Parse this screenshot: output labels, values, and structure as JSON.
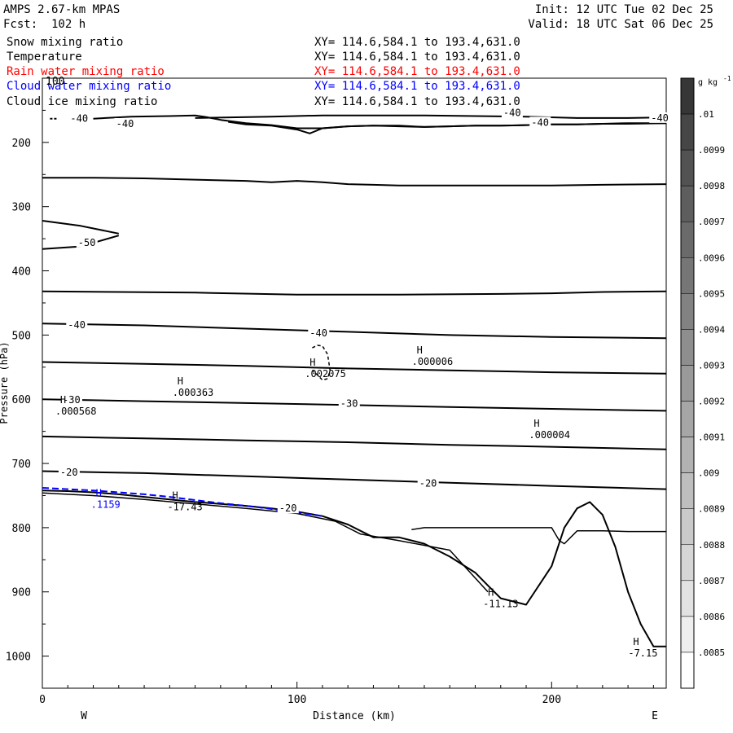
{
  "header": {
    "model": "AMPS 2.67-km MPAS",
    "forecast": "Fcst:  102 h",
    "init": "Init: 12 UTC Tue 02 Dec 25",
    "valid": "Valid: 18 UTC Sat 06 Dec 25"
  },
  "fields": [
    {
      "name": "Snow mixing ratio",
      "xy": "XY= 114.6,584.1 to 193.4,631.0",
      "color": "#000000"
    },
    {
      "name": "Temperature",
      "xy": "XY= 114.6,584.1 to 193.4,631.0",
      "color": "#000000"
    },
    {
      "name": "Rain water mixing ratio",
      "xy": "XY= 114.6,584.1 to 193.4,631.0",
      "color": "#ff0000"
    },
    {
      "name": "Cloud water mixing ratio",
      "xy": "XY= 114.6,584.1 to 193.4,631.0",
      "color": "#0000ff"
    },
    {
      "name": "Cloud ice mixing ratio",
      "xy": "XY= 114.6,584.1 to 193.4,631.0",
      "color": "#000000"
    }
  ],
  "chart_data": {
    "type": "line",
    "title": "",
    "xlabel": "Distance (km)",
    "ylabel": "Pressure (hPa)",
    "xlim": [
      0,
      245
    ],
    "ylim": [
      1050,
      100
    ],
    "x_ticks": [
      0,
      100,
      200
    ],
    "y_ticks": [
      200,
      300,
      400,
      500,
      600,
      700,
      800,
      900,
      1000
    ],
    "y_top_label": "100",
    "west_label": "W",
    "east_label": "E",
    "colorbar": {
      "unit": "g kg",
      "unit_sup": "-1",
      "levels": [
        ".01",
        ".0099",
        ".0098",
        ".0097",
        ".0096",
        ".0095",
        ".0094",
        ".0093",
        ".0092",
        ".0091",
        ".009",
        ".0089",
        ".0088",
        ".0087",
        ".0086",
        ".0085"
      ],
      "colors": [
        "#363636",
        "#464646",
        "#525252",
        "#5e5e5e",
        "#6a6a6a",
        "#767676",
        "#828282",
        "#8e8e8e",
        "#9a9a9a",
        "#a6a6a6",
        "#b2b2b2",
        "#bebebe",
        "#cacaca",
        "#d6d6d6",
        "#e2e2e2",
        "#eeeeee",
        "#ffffff"
      ]
    },
    "isotherms": [
      {
        "x": [
          60,
          90,
          110,
          130,
          150,
          170,
          190,
          210,
          230,
          245
        ],
        "y": [
          162,
          160,
          158,
          158,
          158,
          159,
          160,
          162,
          162,
          161
        ]
      },
      {
        "x": [
          73,
          80,
          90,
          100,
          105,
          110,
          120,
          130,
          140,
          150,
          160,
          170,
          180,
          190,
          200,
          210,
          220,
          230,
          245
        ],
        "y": [
          168,
          172,
          174,
          180,
          186,
          178,
          175,
          174,
          175,
          176,
          175,
          174,
          174,
          173,
          172,
          172,
          171,
          171,
          170
        ]
      },
      {
        "x": [
          20,
          35,
          50,
          60,
          65,
          70,
          80,
          90,
          100,
          110,
          120,
          130,
          140,
          150,
          160,
          170,
          180,
          190,
          200,
          210,
          220,
          230,
          245
        ],
        "y": [
          163,
          160,
          159,
          158,
          161,
          165,
          170,
          173,
          178,
          178,
          175,
          174,
          174,
          176,
          175,
          174,
          174,
          173,
          172,
          172,
          171,
          170,
          170
        ]
      },
      {
        "x": [
          0,
          20,
          40,
          60,
          80,
          90,
          100,
          110,
          120,
          130,
          140,
          150,
          160,
          180,
          200,
          220,
          245
        ],
        "y": [
          255,
          255,
          256,
          258,
          260,
          262,
          260,
          262,
          265,
          266,
          267,
          267,
          267,
          267,
          267,
          266,
          265
        ]
      },
      {
        "x": [
          0,
          15,
          30
        ],
        "y": [
          322,
          330,
          342
        ]
      },
      {
        "x": [
          0,
          15,
          30
        ],
        "y": [
          366,
          362,
          345
        ]
      },
      {
        "x": [
          0,
          30,
          60,
          100,
          140,
          180,
          200,
          220,
          245
        ],
        "y": [
          432,
          433,
          434,
          437,
          437,
          436,
          435,
          433,
          432
        ]
      },
      {
        "x": [
          0,
          40,
          80,
          120,
          160,
          200,
          245
        ],
        "y": [
          482,
          485,
          490,
          495,
          500,
          503,
          505
        ]
      },
      {
        "x": [
          0,
          40,
          80,
          120,
          160,
          200,
          245
        ],
        "y": [
          542,
          545,
          548,
          552,
          555,
          558,
          560
        ]
      },
      {
        "x": [
          0,
          40,
          80,
          120,
          160,
          200,
          245
        ],
        "y": [
          600,
          603,
          606,
          609,
          612,
          615,
          618
        ]
      },
      {
        "x": [
          0,
          40,
          80,
          120,
          160,
          200,
          245
        ],
        "y": [
          658,
          661,
          664,
          667,
          671,
          674,
          678
        ]
      },
      {
        "x": [
          0,
          40,
          80,
          120,
          160,
          200,
          245
        ],
        "y": [
          712,
          715,
          720,
          725,
          730,
          735,
          740
        ]
      }
    ],
    "terrain_upper": {
      "x": [
        0,
        10,
        20,
        30,
        40,
        50,
        60,
        70,
        80,
        90,
        100,
        110,
        120,
        130,
        140,
        150,
        160,
        170,
        175,
        180,
        190,
        200,
        205,
        210,
        215,
        220,
        225,
        230,
        235,
        240,
        245
      ],
      "y": [
        742,
        743,
        745,
        748,
        752,
        756,
        760,
        763,
        766,
        770,
        775,
        782,
        795,
        815,
        815,
        825,
        845,
        870,
        890,
        910,
        920,
        860,
        800,
        770,
        760,
        780,
        830,
        900,
        950,
        985,
        985
      ]
    },
    "terrain_lower": {
      "x": [
        0,
        20,
        40,
        60,
        80,
        100,
        115,
        125,
        140,
        160,
        175
      ],
      "y": [
        746,
        750,
        756,
        763,
        770,
        778,
        790,
        810,
        820,
        835,
        900
      ]
    },
    "snow_contour": {
      "x": [
        145,
        150,
        160,
        170,
        180,
        190,
        200,
        203,
        205,
        210,
        220,
        230,
        245
      ],
      "y": [
        803,
        800,
        800,
        800,
        800,
        800,
        800,
        820,
        825,
        805,
        805,
        806,
        806
      ]
    },
    "cloud_water": {
      "x": [
        0,
        10,
        20,
        30,
        40,
        50,
        60,
        70,
        80,
        90,
        100,
        110
      ],
      "y": [
        738,
        740,
        742,
        745,
        748,
        752,
        757,
        762,
        766,
        771,
        776,
        782
      ]
    },
    "ice_dashed": {
      "x": [
        106,
        108,
        110,
        112,
        113,
        112,
        110,
        108,
        106
      ],
      "y": [
        520,
        516,
        517,
        530,
        555,
        568,
        570,
        562,
        555
      ]
    },
    "top_left_dashed": {
      "x": [
        3,
        6
      ],
      "y": [
        163,
        163
      ]
    },
    "contour_labels": [
      {
        "text": "-40",
        "x": 11,
        "y": 163
      },
      {
        "text": "-40",
        "x": 29,
        "y": 171
      },
      {
        "text": "-40",
        "x": 181,
        "y": 154
      },
      {
        "text": "-40",
        "x": 192,
        "y": 169
      },
      {
        "text": "-40",
        "x": 239,
        "y": 162
      },
      {
        "text": "-50",
        "x": 14,
        "y": 356
      },
      {
        "text": "-40",
        "x": 10,
        "y": 484
      },
      {
        "text": "-40",
        "x": 105,
        "y": 497
      },
      {
        "text": "-30",
        "x": 8,
        "y": 601
      },
      {
        "text": "-30",
        "x": 117,
        "y": 607
      },
      {
        "text": "-20",
        "x": 7,
        "y": 714
      },
      {
        "text": "-20",
        "x": 148,
        "y": 731
      },
      {
        "text": "-20",
        "x": 93,
        "y": 770
      }
    ],
    "extrema": [
      {
        "mark": "H",
        "value": ".000568",
        "x": 7,
        "y": 606,
        "color": "#000000"
      },
      {
        "mark": "H",
        "value": ".000363",
        "x": 53,
        "y": 577,
        "color": "#000000"
      },
      {
        "mark": "H",
        "value": ".002075",
        "x": 105,
        "y": 548,
        "color": "#000000"
      },
      {
        "mark": "H",
        "value": ".000006",
        "x": 147,
        "y": 529,
        "color": "#000000"
      },
      {
        "mark": "H",
        "value": ".000004",
        "x": 193,
        "y": 643,
        "color": "#000000"
      },
      {
        "mark": "H",
        "value": ".1159",
        "x": 21,
        "y": 751,
        "color": "#0000ff"
      },
      {
        "mark": "H",
        "value": "-17.43",
        "x": 51,
        "y": 755,
        "color": "#000000"
      },
      {
        "mark": "H",
        "value": "-11.13",
        "x": 175,
        "y": 906,
        "color": "#000000"
      },
      {
        "mark": "H",
        "value": "-7.15",
        "x": 232,
        "y": 983,
        "color": "#000000"
      }
    ]
  }
}
